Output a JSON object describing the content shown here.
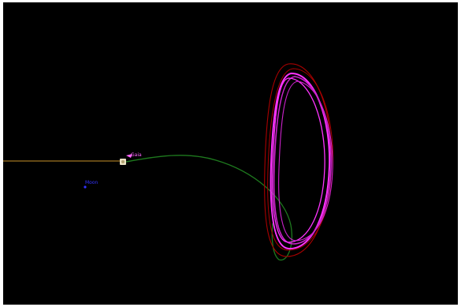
{
  "scene": {
    "background_color": "#000000",
    "labels": {
      "spacecraft": "Gaia",
      "moon": "Moon"
    },
    "colors": {
      "sun_line": "#c8922a",
      "transfer_orbit": "#1e7a1e",
      "halo_orbit_primary": "#ff33ff",
      "halo_orbit_secondary": "#cc22cc",
      "halo_orbit_dark": "#aa0000",
      "spacecraft_label": "#ff66ff",
      "moon_label": "#3333ff",
      "earth_icon": "#e8e0c0"
    }
  }
}
